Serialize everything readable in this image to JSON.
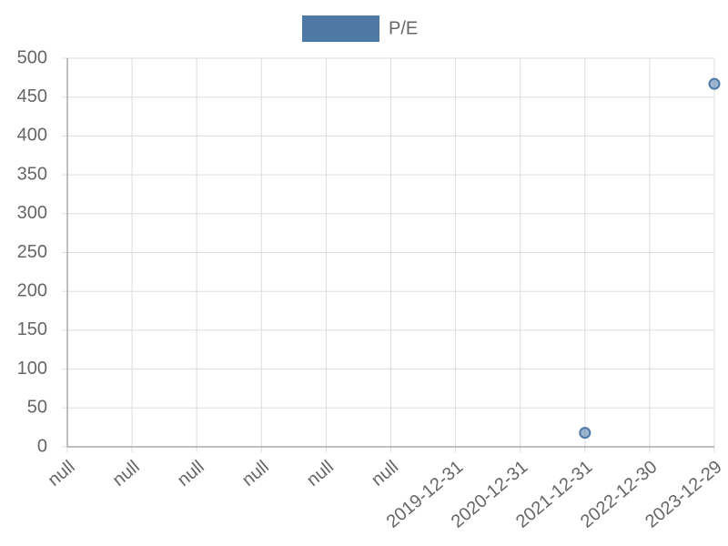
{
  "chart_data": {
    "type": "scatter",
    "categories": [
      "null",
      "null",
      "null",
      "null",
      "null",
      "null",
      "2019-12-31",
      "2020-12-31",
      "2021-12-31",
      "2022-12-30",
      "2023-12-29"
    ],
    "series": [
      {
        "name": "P/E",
        "color": "#4e79a7",
        "values": [
          null,
          null,
          null,
          null,
          null,
          null,
          null,
          null,
          18,
          null,
          467
        ]
      }
    ],
    "ylim": [
      0,
      500
    ],
    "yticks": [
      0,
      50,
      100,
      150,
      200,
      250,
      300,
      350,
      400,
      450,
      500
    ],
    "grid": true,
    "legend": "top"
  }
}
